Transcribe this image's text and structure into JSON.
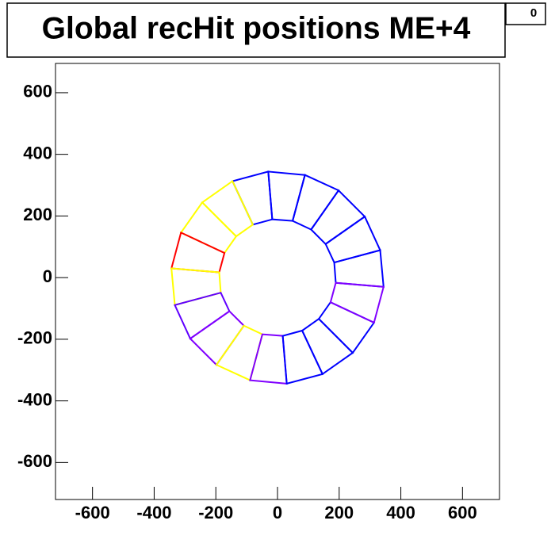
{
  "chart_data": {
    "type": "line",
    "title": "Global recHit positions ME+4",
    "stats": "0",
    "xlim": [
      -720,
      720
    ],
    "ylim": [
      -720,
      695
    ],
    "xticks": [
      -600,
      -400,
      -200,
      0,
      200,
      400,
      600
    ],
    "yticks": [
      -600,
      -400,
      -200,
      0,
      200,
      400,
      600
    ],
    "series": [
      {
        "color": "#0000ff",
        "x": [
          189,
          344,
          333,
          184
        ],
        "y": [
          -17,
          -30,
          89,
          49
        ]
      },
      {
        "color": "#0000ff",
        "x": [
          184,
          333,
          283,
          156
        ],
        "y": [
          49,
          89,
          198,
          109
        ]
      },
      {
        "color": "#0000ff",
        "x": [
          156,
          283,
          198,
          109
        ],
        "y": [
          109,
          198,
          283,
          156
        ]
      },
      {
        "color": "#0000ff",
        "x": [
          109,
          198,
          89,
          49
        ],
        "y": [
          156,
          283,
          333,
          184
        ]
      },
      {
        "color": "#0000ff",
        "x": [
          49,
          89,
          -30,
          -17
        ],
        "y": [
          184,
          333,
          344,
          189
        ]
      },
      {
        "color": "#0000ff",
        "x": [
          -17,
          -30,
          -146,
          -80
        ],
        "y": [
          189,
          344,
          313,
          172
        ]
      },
      {
        "color": "#ffff00",
        "x": [
          -80,
          -146,
          -244,
          -134
        ],
        "y": [
          172,
          313,
          244,
          134
        ]
      },
      {
        "color": "#ffff00",
        "x": [
          -134,
          -244,
          -313,
          -172
        ],
        "y": [
          134,
          244,
          146,
          80
        ]
      },
      {
        "color": "#ff0000",
        "x": [
          -172,
          -313,
          -344,
          -189
        ],
        "y": [
          80,
          146,
          30,
          17
        ]
      },
      {
        "color": "#ffff00",
        "x": [
          -189,
          -344,
          -333,
          -184
        ],
        "y": [
          17,
          30,
          -89,
          -49
        ]
      },
      {
        "color": "#6000ff",
        "x": [
          -184,
          -333,
          -283,
          -156
        ],
        "y": [
          -49,
          -89,
          -198,
          -109
        ]
      },
      {
        "color": "#8000ff",
        "x": [
          -156,
          -283,
          -198,
          -109
        ],
        "y": [
          -109,
          -198,
          -283,
          -156
        ]
      },
      {
        "color": "#ffff00",
        "x": [
          -109,
          -198,
          -89,
          -49
        ],
        "y": [
          -156,
          -283,
          -333,
          -184
        ]
      },
      {
        "color": "#8000ff",
        "x": [
          -49,
          -89,
          30,
          17
        ],
        "y": [
          -184,
          -333,
          -344,
          -189
        ]
      },
      {
        "color": "#0000ff",
        "x": [
          17,
          30,
          146,
          80
        ],
        "y": [
          -189,
          -344,
          -313,
          -172
        ]
      },
      {
        "color": "#0000ff",
        "x": [
          80,
          146,
          244,
          134
        ],
        "y": [
          -172,
          -313,
          -244,
          -134
        ]
      },
      {
        "color": "#0000ff",
        "x": [
          134,
          244,
          313,
          172
        ],
        "y": [
          -134,
          -244,
          -146,
          -80
        ]
      },
      {
        "color": "#8000ff",
        "x": [
          172,
          313,
          344,
          189
        ],
        "y": [
          -80,
          -146,
          -30,
          -17
        ]
      }
    ]
  }
}
